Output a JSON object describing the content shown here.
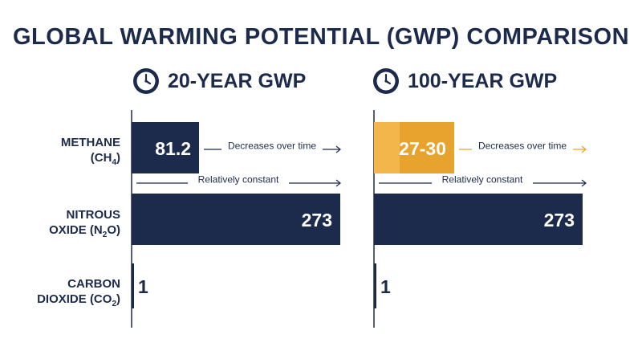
{
  "title": "GLOBAL WARMING POTENTIAL (GWP) COMPARISON",
  "icons": {
    "clock": "clock-icon",
    "arrow": "arrow-right-icon"
  },
  "colors": {
    "navy": "#1c2b4b",
    "orange": "#e8a22e",
    "orange_light": "#f3b64a",
    "white": "#ffffff"
  },
  "rows": [
    {
      "line1": "METHANE",
      "line2_prefix": "(CH",
      "line2_sub": "4",
      "line2_suffix": ")"
    },
    {
      "line1": "NITROUS",
      "line2_prefix": "OXIDE (N",
      "line2_sub": "2",
      "line2_suffix": "O)"
    },
    {
      "line1": "CARBON",
      "line2_prefix": "DIOXIDE (CO",
      "line2_sub": "2",
      "line2_suffix": ")"
    }
  ],
  "chart_data": {
    "type": "bar",
    "orientation": "horizontal",
    "title": "GLOBAL WARMING POTENTIAL (GWP) COMPARISON",
    "categories": [
      "METHANE (CH4)",
      "NITROUS OXIDE (N2O)",
      "CARBON DIOXIDE (CO2)"
    ],
    "panels": [
      {
        "name": "20-YEAR GWP",
        "values": [
          81.2,
          273,
          1
        ],
        "labels": [
          "81.2",
          "273",
          "1"
        ],
        "highlight": [
          false,
          false,
          false
        ],
        "annotations": [
          {
            "row": 0,
            "text": "Decreases over time"
          },
          {
            "row": 1,
            "text": "Relatively constant"
          }
        ]
      },
      {
        "name": "100-YEAR GWP",
        "values": [
          28.5,
          273,
          1
        ],
        "range": [
          27,
          30
        ],
        "labels": [
          "27-30",
          "273",
          "1"
        ],
        "highlight": [
          true,
          false,
          false
        ],
        "annotations": [
          {
            "row": 0,
            "text": "Decreases over time"
          },
          {
            "row": 1,
            "text": "Relatively constant"
          }
        ]
      }
    ],
    "xlim": [
      0,
      273
    ],
    "grid": false,
    "legend": "none"
  }
}
